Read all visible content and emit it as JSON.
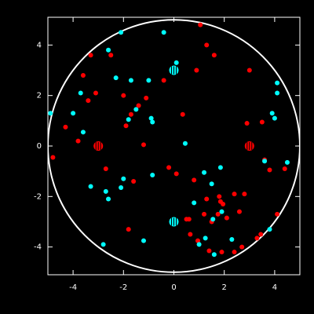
{
  "chart_data": {
    "type": "scatter",
    "xlim": [
      -5,
      5
    ],
    "ylim": [
      -5.1,
      5.1
    ],
    "xticks": [
      -4,
      -2,
      0,
      2,
      4
    ],
    "yticks": [
      -4,
      -2,
      0,
      2,
      4
    ],
    "circle_radius": 5,
    "series": [
      {
        "color": "#ff0000",
        "marker": "small",
        "x": [
          -3.3,
          -2.5,
          -3.6,
          -3.4,
          -3.1,
          -2.0,
          -1.4,
          -1.1,
          -1.7,
          -1.9,
          -1.2,
          -4.8,
          -3.8,
          -4.3,
          -2.7,
          -1.6,
          -0.2,
          0.1,
          0.35,
          -0.4,
          1.05,
          1.3,
          1.6,
          0.9,
          3.0,
          2.9,
          3.5,
          3.6,
          3.8,
          4.4,
          4.1,
          3.45,
          3.3,
          2.4,
          2.8,
          2.6,
          1.8,
          1.85,
          1.95,
          1.3,
          1.2,
          1.75,
          2.1,
          1.5,
          0.6,
          0.65,
          0.95,
          1.4,
          1.9,
          2.4,
          2.7,
          0.8,
          -1.8,
          0.5
        ],
        "y": [
          3.6,
          3.6,
          2.8,
          1.8,
          2.1,
          2.0,
          1.6,
          1.9,
          1.25,
          0.8,
          0.05,
          -0.45,
          0.2,
          0.75,
          -0.9,
          -1.4,
          -0.85,
          -1.1,
          1.25,
          2.6,
          4.8,
          4.0,
          3.6,
          3.0,
          3.0,
          0.9,
          0.95,
          -0.55,
          -0.95,
          -0.9,
          -2.7,
          -3.5,
          -3.65,
          -1.9,
          -1.9,
          -2.6,
          -2.0,
          -2.2,
          -2.3,
          -2.1,
          -2.7,
          -2.7,
          -2.85,
          -3.0,
          -2.9,
          -3.5,
          -3.75,
          -4.15,
          -4.2,
          -4.2,
          -4.0,
          -1.35,
          -3.3,
          -2.9
        ]
      },
      {
        "color": "#00ffff",
        "marker": "small",
        "x": [
          -2.1,
          -0.4,
          0.1,
          -2.6,
          -2.3,
          -1.7,
          -1.0,
          -3.7,
          -4.0,
          -4.9,
          -3.6,
          -1.5,
          -1.8,
          -0.9,
          -0.85,
          0.45,
          -3.3,
          -2.7,
          -2.6,
          -2.1,
          -2.0,
          -0.85,
          -2.8,
          -1.2,
          0.8,
          1.2,
          1.5,
          1.85,
          1.9,
          1.55,
          1.25,
          1.0,
          1.6,
          2.3,
          3.6,
          4.5,
          4.1,
          3.9,
          4.0,
          4.1,
          3.8
        ],
        "y": [
          4.5,
          4.5,
          3.3,
          3.8,
          2.7,
          2.6,
          2.6,
          2.1,
          1.3,
          1.3,
          0.55,
          1.45,
          1.05,
          1.1,
          0.95,
          0.1,
          -1.6,
          -1.8,
          -2.1,
          -1.65,
          -1.3,
          -1.15,
          -3.9,
          -3.75,
          -2.25,
          -1.05,
          -1.5,
          -0.85,
          -2.6,
          -2.9,
          -3.65,
          -3.9,
          -4.3,
          -3.7,
          -0.6,
          -0.65,
          2.5,
          1.3,
          1.1,
          2.1,
          -3.3
        ]
      },
      {
        "color": "#ff0000",
        "marker": "large",
        "x": [
          -3,
          3
        ],
        "y": [
          0,
          0
        ]
      },
      {
        "color": "#00ffff",
        "marker": "large",
        "x": [
          0,
          0
        ],
        "y": [
          3,
          -3
        ]
      }
    ]
  }
}
